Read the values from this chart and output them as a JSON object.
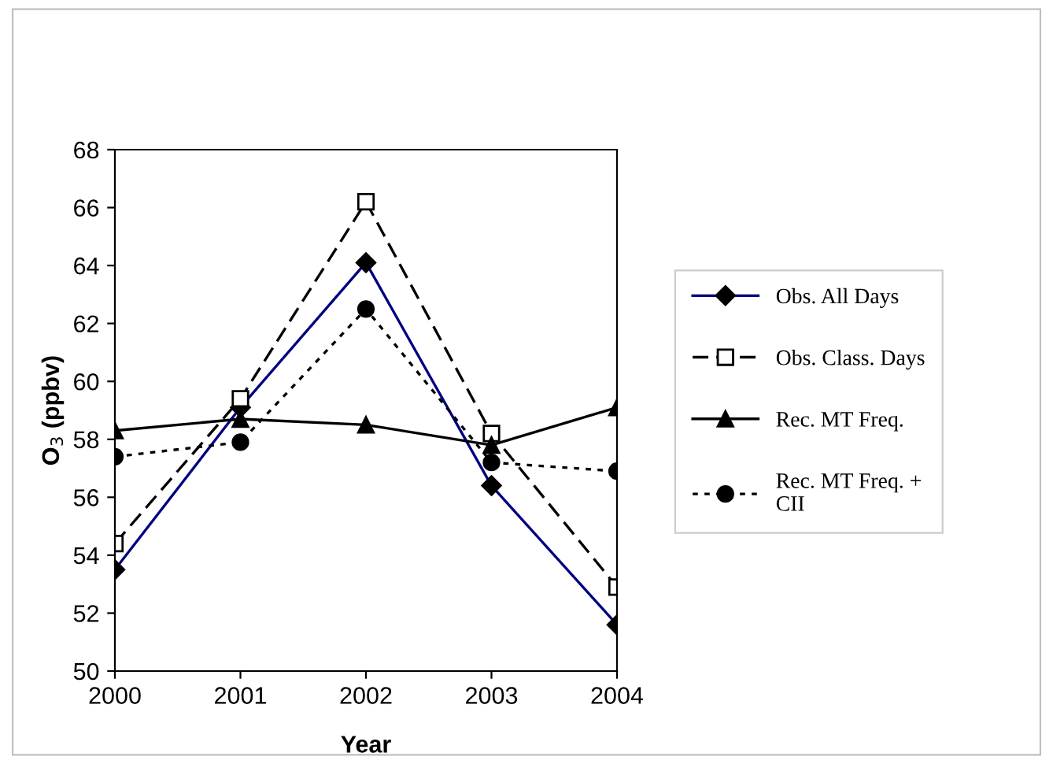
{
  "chart_data": {
    "type": "line",
    "xlabel": "Year",
    "ylabel": "O$_{3}$ (ppbv)",
    "categories": [
      "2000",
      "2001",
      "2002",
      "2003",
      "2004"
    ],
    "ylim": [
      50,
      68
    ],
    "yticks": [
      50,
      52,
      54,
      56,
      58,
      60,
      62,
      64,
      66,
      68
    ],
    "grid": false,
    "legend": "right",
    "series": [
      {
        "name": "Obs. All Days",
        "color": "#000080",
        "marker": "diamond",
        "line_style": "solid",
        "values": [
          53.5,
          59.1,
          64.1,
          56.4,
          51.6
        ]
      },
      {
        "name": "Obs. Class. Days",
        "color": "#000000",
        "marker": "square",
        "line_style": "dashed",
        "values": [
          54.4,
          59.4,
          66.2,
          58.2,
          52.9
        ]
      },
      {
        "name": "Rec. MT Freq.",
        "color": "#000000",
        "marker": "triangle",
        "line_style": "solid",
        "values": [
          58.3,
          58.7,
          58.5,
          57.8,
          59.1
        ]
      },
      {
        "name": "Rec. MT Freq. + CII",
        "color": "#000000",
        "marker": "circle",
        "line_style": "dotted",
        "values": [
          57.4,
          57.9,
          62.5,
          57.2,
          56.9
        ]
      }
    ]
  }
}
